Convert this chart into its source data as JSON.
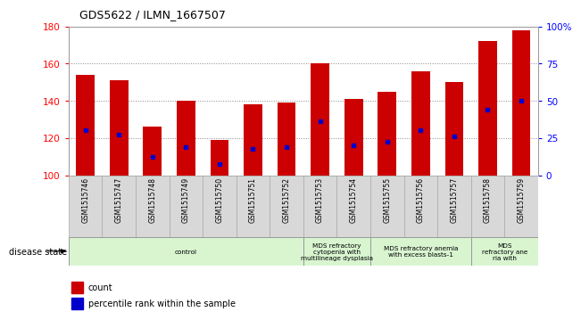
{
  "title": "GDS5622 / ILMN_1667507",
  "samples": [
    "GSM1515746",
    "GSM1515747",
    "GSM1515748",
    "GSM1515749",
    "GSM1515750",
    "GSM1515751",
    "GSM1515752",
    "GSM1515753",
    "GSM1515754",
    "GSM1515755",
    "GSM1515756",
    "GSM1515757",
    "GSM1515758",
    "GSM1515759"
  ],
  "bar_values": [
    154,
    151,
    126,
    140,
    119,
    138,
    139,
    160,
    141,
    145,
    156,
    150,
    172,
    178
  ],
  "bar_base": 100,
  "percentile_values": [
    124,
    122,
    110,
    115,
    106,
    114,
    115,
    129,
    116,
    118,
    124,
    121,
    135,
    140
  ],
  "ylim_left": [
    100,
    180
  ],
  "ylim_right": [
    0,
    100
  ],
  "yticks_left": [
    100,
    120,
    140,
    160,
    180
  ],
  "yticks_right": [
    0,
    25,
    50,
    75,
    100
  ],
  "bar_color": "#cc0000",
  "percentile_color": "#0000cc",
  "grid_color": "#888888",
  "sample_bg_color": "#d8d8d8",
  "disease_groups": [
    {
      "label": "control",
      "start": 0,
      "end": 7,
      "color": "#d8f5d0"
    },
    {
      "label": "MDS refractory\ncytopenia with\nmultilineage dysplasia",
      "start": 7,
      "end": 9,
      "color": "#d8f5d0"
    },
    {
      "label": "MDS refractory anemia\nwith excess blasts-1",
      "start": 9,
      "end": 12,
      "color": "#d8f5d0"
    },
    {
      "label": "MDS\nrefractory ane\nria with",
      "start": 12,
      "end": 14,
      "color": "#d8f5d0"
    }
  ],
  "legend_items": [
    {
      "label": "count",
      "color": "#cc0000"
    },
    {
      "label": "percentile rank within the sample",
      "color": "#0000cc"
    }
  ]
}
